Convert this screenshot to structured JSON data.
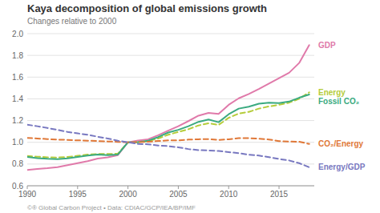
{
  "chart_data": {
    "type": "line",
    "title": "Kaya decomposition of global emissions growth",
    "subtitle": "Changes relative to 2000",
    "annotations": [
      "©® Global Carbon Project  •  Data: CDIAC/GCP/IEA/BP/IMF"
    ],
    "x": [
      1990,
      1991,
      1992,
      1993,
      1994,
      1995,
      1996,
      1997,
      1998,
      1999,
      2000,
      2001,
      2002,
      2003,
      2004,
      2005,
      2006,
      2007,
      2008,
      2009,
      2010,
      2011,
      2012,
      2013,
      2014,
      2015,
      2016,
      2017,
      2018
    ],
    "series": [
      {
        "name": "GDP",
        "color": "#e07aaa",
        "line_style": "solid",
        "values": [
          0.745,
          0.755,
          0.762,
          0.772,
          0.79,
          0.808,
          0.827,
          0.85,
          0.862,
          0.882,
          1.0,
          1.016,
          1.028,
          1.065,
          1.108,
          1.148,
          1.195,
          1.245,
          1.271,
          1.262,
          1.345,
          1.405,
          1.445,
          1.49,
          1.54,
          1.59,
          1.64,
          1.73,
          1.895
        ]
      },
      {
        "name": "Energy",
        "color": "#b5cc3a",
        "line_style": "dashed",
        "values": [
          0.875,
          0.868,
          0.862,
          0.86,
          0.865,
          0.876,
          0.887,
          0.893,
          0.892,
          0.895,
          1.0,
          1.001,
          1.01,
          1.035,
          1.07,
          1.095,
          1.12,
          1.155,
          1.175,
          1.16,
          1.225,
          1.265,
          1.28,
          1.31,
          1.33,
          1.345,
          1.365,
          1.4,
          1.46
        ]
      },
      {
        "name": "Fossil CO₂",
        "color": "#3aaa80",
        "line_style": "solid",
        "values": [
          0.865,
          0.855,
          0.848,
          0.845,
          0.852,
          0.865,
          0.878,
          0.888,
          0.882,
          0.888,
          1.0,
          1.002,
          1.015,
          1.048,
          1.09,
          1.115,
          1.148,
          1.188,
          1.21,
          1.185,
          1.258,
          1.31,
          1.328,
          1.355,
          1.365,
          1.36,
          1.375,
          1.41,
          1.44
        ]
      },
      {
        "name": "CO₂/Energy",
        "color": "#e07838",
        "line_style": "dashed",
        "values": [
          1.04,
          1.035,
          1.03,
          1.025,
          1.022,
          1.018,
          1.015,
          1.012,
          1.008,
          1.004,
          1.0,
          1.001,
          1.005,
          1.012,
          1.018,
          1.018,
          1.025,
          1.028,
          1.03,
          1.022,
          1.028,
          1.038,
          1.038,
          1.034,
          1.026,
          1.011,
          1.007,
          1.005,
          0.985
        ]
      },
      {
        "name": "Energy/GDP",
        "color": "#7878c0",
        "line_style": "dashed",
        "values": [
          1.162,
          1.148,
          1.132,
          1.114,
          1.096,
          1.082,
          1.07,
          1.051,
          1.035,
          1.015,
          1.0,
          0.985,
          0.982,
          0.971,
          0.965,
          0.954,
          0.938,
          0.928,
          0.925,
          0.92,
          0.91,
          0.9,
          0.886,
          0.878,
          0.864,
          0.846,
          0.833,
          0.808,
          0.77
        ]
      }
    ],
    "xlim": [
      1990,
      2018.5
    ],
    "ylim": [
      0.6,
      2.0
    ],
    "xticks": [
      1990,
      1995,
      2000,
      2005,
      2010,
      2015
    ],
    "yticks": [
      0.6,
      0.8,
      {
        "value": 1,
        "label": "1.0"
      },
      1.2,
      1.4,
      1.6,
      1.8,
      {
        "value": 2,
        "label": "2.0"
      }
    ],
    "grid": true
  }
}
